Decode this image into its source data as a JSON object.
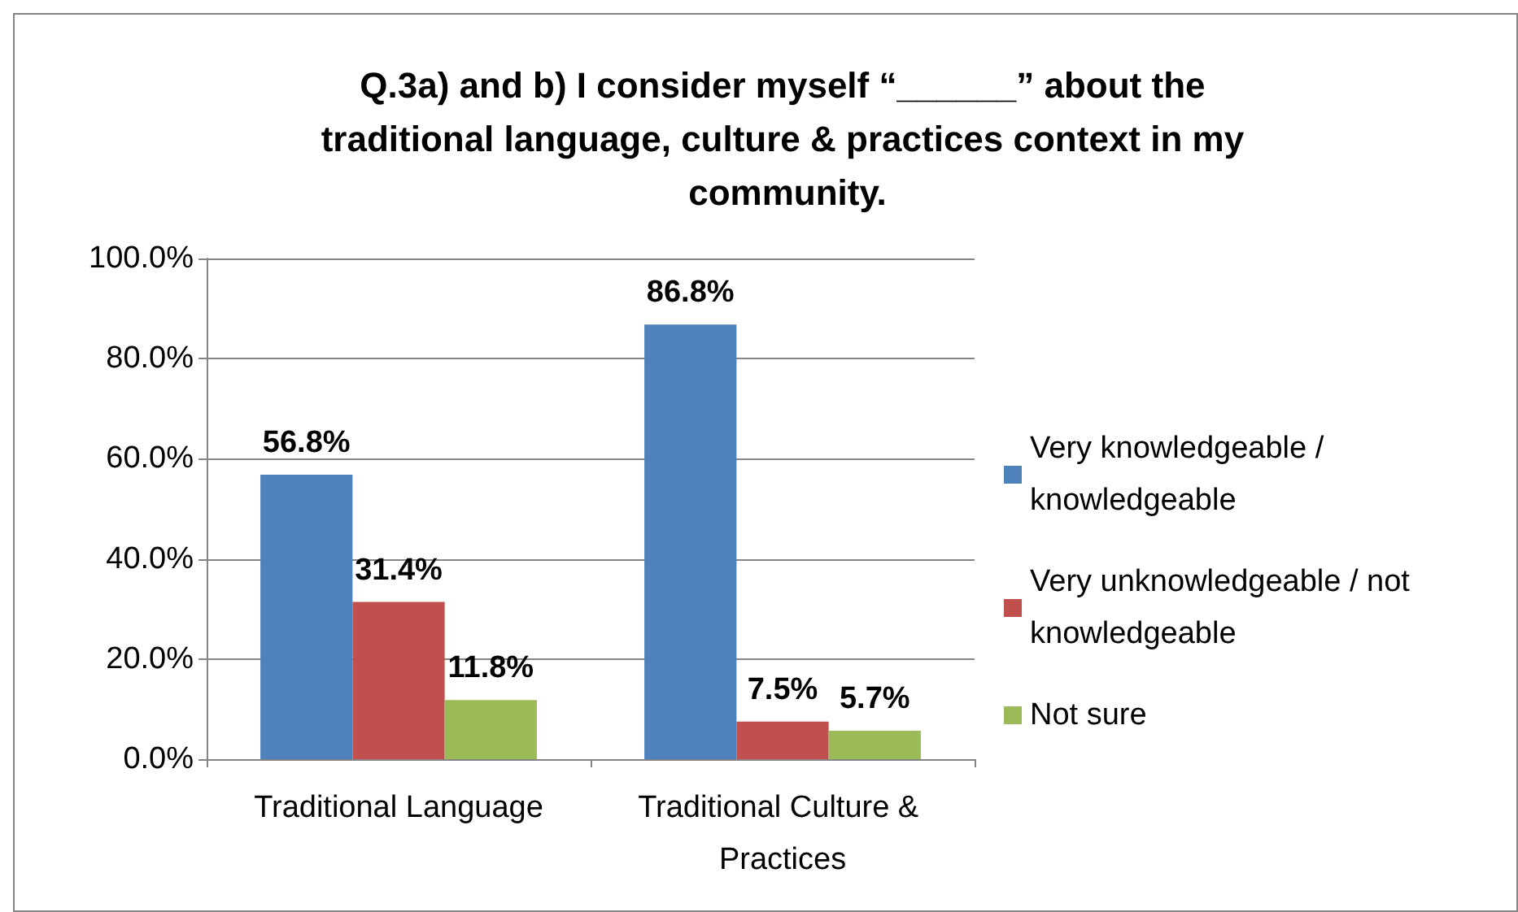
{
  "chart_data": {
    "type": "bar",
    "title": "Q.3a) and b) I consider myself “______” about the traditional language, culture & practices context in my community.",
    "categories": [
      "Traditional Language",
      "Traditional Culture & Practices"
    ],
    "series": [
      {
        "name": "Very knowledgeable / knowledgeable",
        "color": "#4f81bd",
        "values": [
          56.8,
          86.8
        ],
        "value_labels": [
          "56.8%",
          "86.8%"
        ]
      },
      {
        "name": "Very unknowledgeable / not knowledgeable",
        "color": "#c0504d",
        "values": [
          31.4,
          7.5
        ],
        "value_labels": [
          "31.4%",
          "7.5%"
        ]
      },
      {
        "name": "Not sure",
        "color": "#9bbb59",
        "values": [
          11.8,
          5.7
        ],
        "value_labels": [
          "11.8%",
          "5.7%"
        ]
      }
    ],
    "ylim": [
      0,
      100
    ],
    "yticks": [
      {
        "value": 0,
        "label": "0.0%"
      },
      {
        "value": 20,
        "label": "20.0%"
      },
      {
        "value": 40,
        "label": "40.0%"
      },
      {
        "value": 60,
        "label": "60.0%"
      },
      {
        "value": 80,
        "label": "80.0%"
      },
      {
        "value": 100,
        "label": "100.0%"
      }
    ],
    "grid": "y",
    "legend": "right"
  }
}
